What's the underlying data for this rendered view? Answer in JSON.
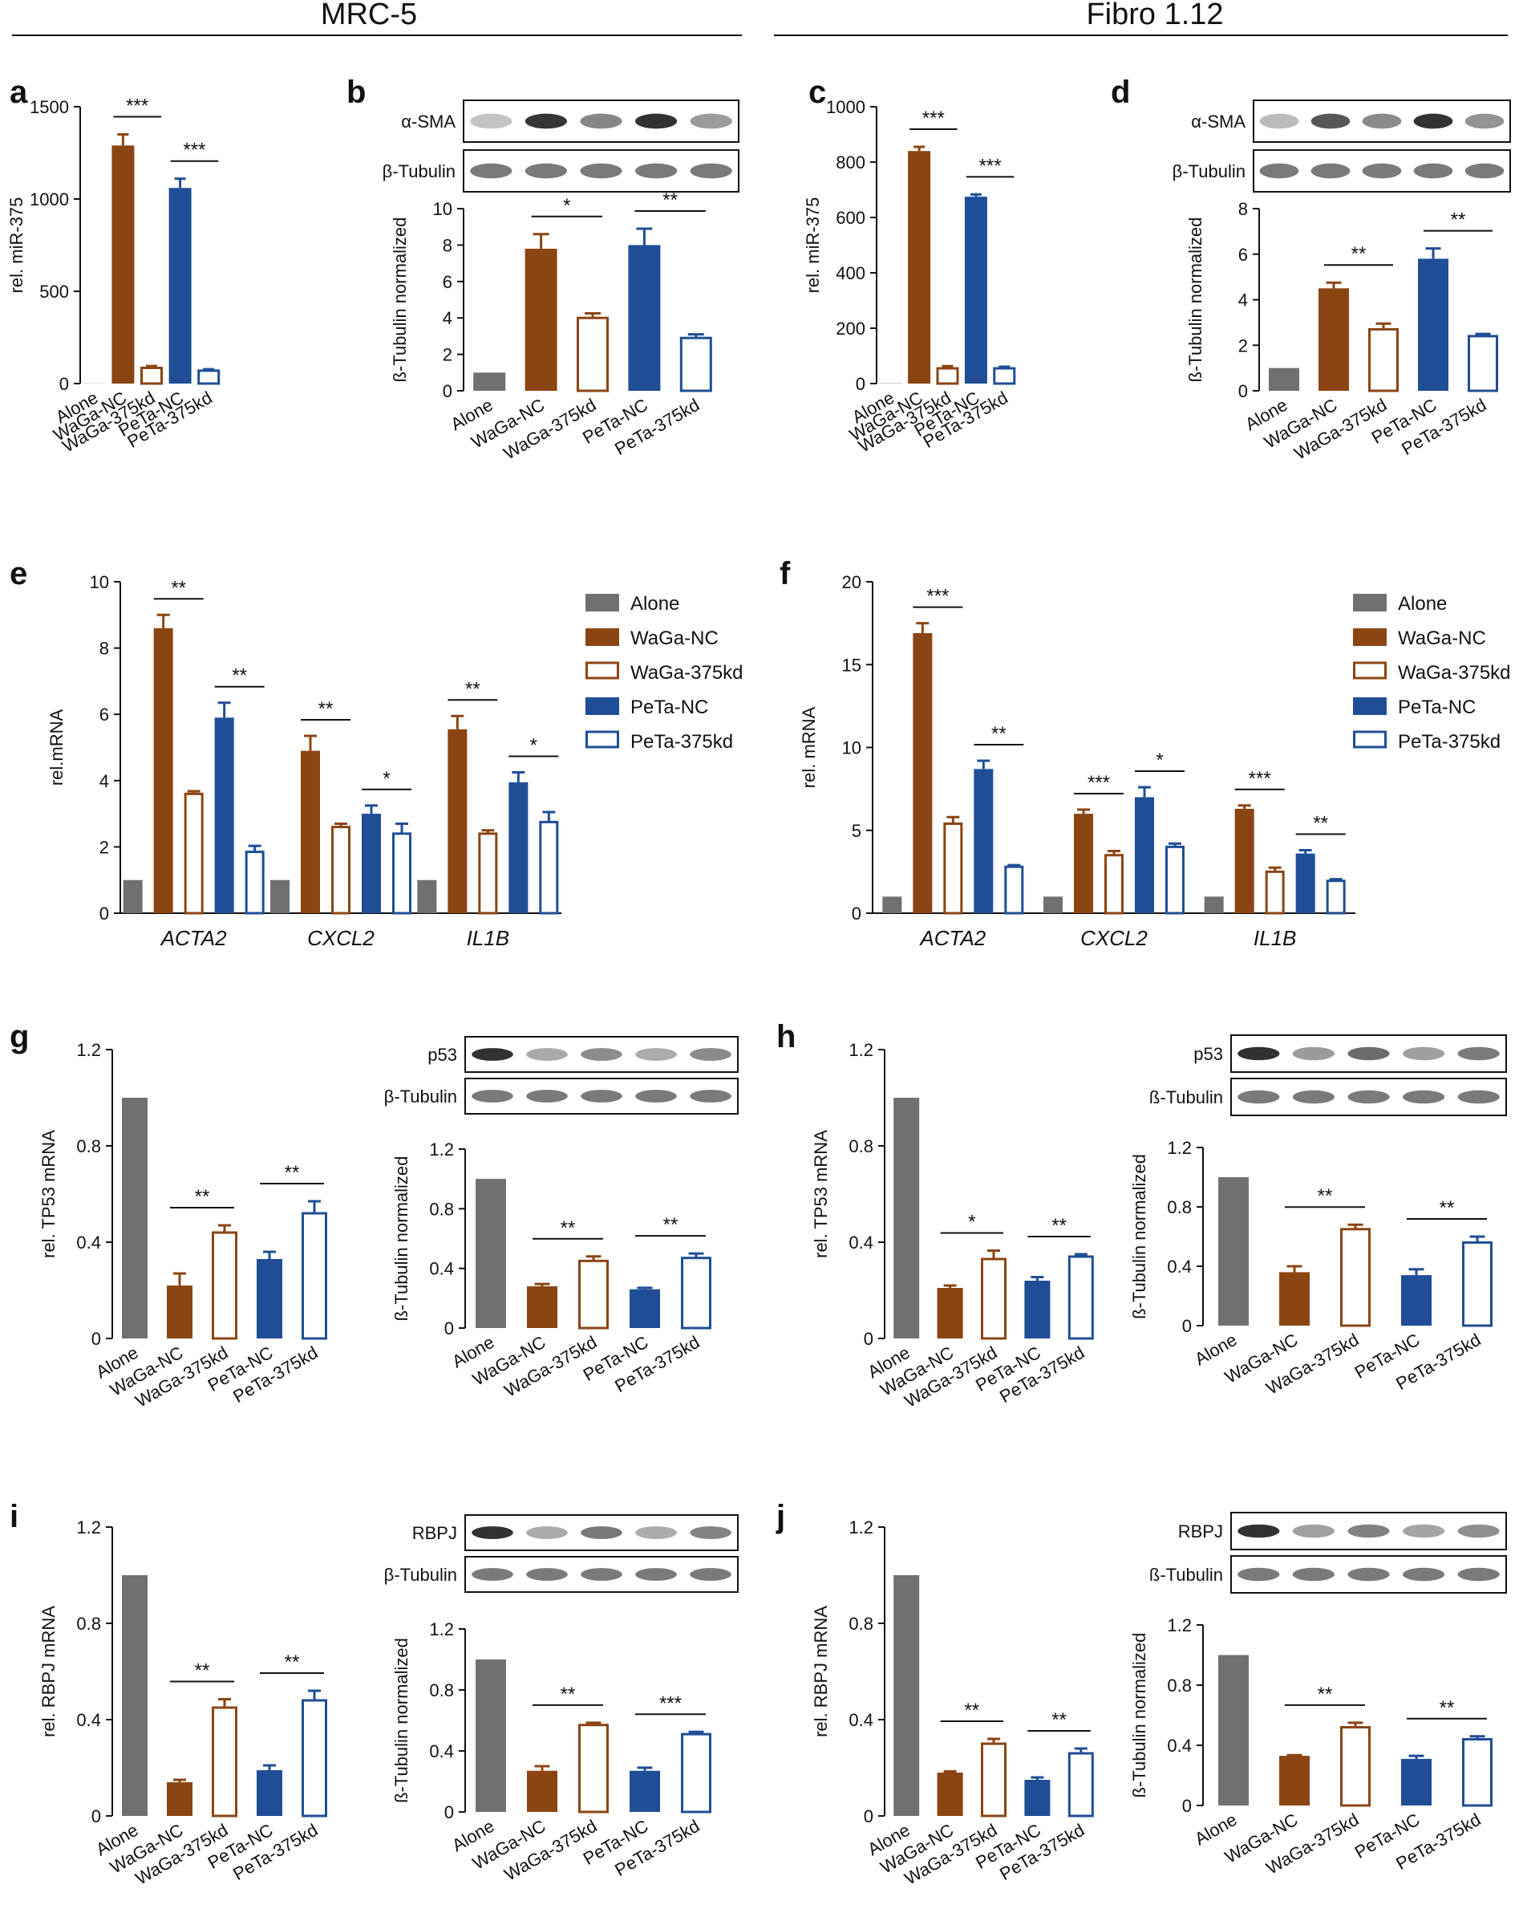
{
  "headers": {
    "left": "MRC-5",
    "right": "Fibro 1.12"
  },
  "colors": {
    "Alone": "#707070",
    "WaGa-NC": "#8B4513",
    "WaGa-375kd": "#8B4513",
    "PeTa-NC": "#1F4E96",
    "PeTa-375kd": "#1F4E96"
  },
  "legend": [
    "Alone",
    "WaGa-NC",
    "WaGa-375kd",
    "PeTa-NC",
    "PeTa-375kd"
  ],
  "chart_data": [
    {
      "id": "a",
      "type": "bar",
      "panel": "a",
      "categories": [
        "Alone",
        "WaGa-NC",
        "WaGa-375kd",
        "PeTa-NC",
        "PeTa-375kd"
      ],
      "values": [
        1,
        1290,
        85,
        1060,
        70
      ],
      "errors": [
        0,
        60,
        10,
        50,
        8
      ],
      "ylabel": "rel. miR-375",
      "ylim": [
        0,
        1500
      ],
      "yticks": [
        0,
        500,
        1000,
        1500
      ],
      "sig": [
        {
          "from": 1,
          "to": 2,
          "label": "***"
        },
        {
          "from": 3,
          "to": 4,
          "label": "***"
        }
      ]
    },
    {
      "id": "b",
      "type": "bar",
      "panel": "b",
      "categories": [
        "Alone",
        "WaGa-NC",
        "WaGa-375kd",
        "PeTa-NC",
        "PeTa-375kd"
      ],
      "values": [
        1,
        7.8,
        4.0,
        8.0,
        2.9
      ],
      "errors": [
        0,
        0.8,
        0.25,
        0.9,
        0.2
      ],
      "ylabel": "ß-Tubulin normalized",
      "ylim": [
        0,
        10
      ],
      "yticks": [
        0,
        2,
        4,
        6,
        8,
        10
      ],
      "blots": [
        "α-SMA",
        "β-Tubulin"
      ],
      "sig": [
        {
          "from": 1,
          "to": 2,
          "label": "*"
        },
        {
          "from": 3,
          "to": 4,
          "label": "**"
        }
      ]
    },
    {
      "id": "c",
      "type": "bar",
      "panel": "c",
      "categories": [
        "Alone",
        "WaGa-NC",
        "WaGa-375kd",
        "PeTa-NC",
        "PeTa-375kd"
      ],
      "values": [
        1,
        840,
        55,
        675,
        55
      ],
      "errors": [
        0,
        15,
        8,
        8,
        6
      ],
      "ylabel": "rel. miR-375",
      "ylim": [
        0,
        1000
      ],
      "yticks": [
        0,
        200,
        400,
        600,
        800,
        1000
      ],
      "sig": [
        {
          "from": 1,
          "to": 2,
          "label": "***"
        },
        {
          "from": 3,
          "to": 4,
          "label": "***"
        }
      ]
    },
    {
      "id": "d",
      "type": "bar",
      "panel": "d",
      "categories": [
        "Alone",
        "WaGa-NC",
        "WaGa-375kd",
        "PeTa-NC",
        "PeTa-375kd"
      ],
      "values": [
        1,
        4.5,
        2.7,
        5.8,
        2.4
      ],
      "errors": [
        0,
        0.25,
        0.25,
        0.45,
        0.1
      ],
      "ylabel": "ß-Tubulin normalized",
      "ylim": [
        0,
        8
      ],
      "yticks": [
        0,
        2,
        4,
        6,
        8
      ],
      "blots": [
        "α-SMA",
        "β-Tubulin"
      ],
      "sig": [
        {
          "from": 1,
          "to": 2,
          "label": "**"
        },
        {
          "from": 3,
          "to": 4,
          "label": "**"
        }
      ]
    },
    {
      "id": "e",
      "type": "bar",
      "panel": "e",
      "groups": [
        "ACTA2",
        "CXCL2",
        "IL1B"
      ],
      "series": [
        {
          "name": "Alone",
          "values": [
            1,
            1,
            1
          ],
          "errors": [
            0,
            0,
            0
          ]
        },
        {
          "name": "WaGa-NC",
          "values": [
            8.6,
            4.9,
            5.55
          ],
          "errors": [
            0.4,
            0.45,
            0.4
          ]
        },
        {
          "name": "WaGa-375kd",
          "values": [
            3.6,
            2.6,
            2.4
          ],
          "errors": [
            0.08,
            0.1,
            0.1
          ]
        },
        {
          "name": "PeTa-NC",
          "values": [
            5.9,
            3.0,
            3.95
          ],
          "errors": [
            0.45,
            0.25,
            0.3
          ]
        },
        {
          "name": "PeTa-375kd",
          "values": [
            1.85,
            2.4,
            2.75
          ],
          "errors": [
            0.18,
            0.3,
            0.3
          ]
        }
      ],
      "ylabel": "rel.mRNA",
      "ylim": [
        0,
        10
      ],
      "yticks": [
        0,
        2,
        4,
        6,
        8,
        10
      ],
      "sig": [
        {
          "group": 0,
          "from": 1,
          "to": 2,
          "label": "**"
        },
        {
          "group": 0,
          "from": 3,
          "to": 4,
          "label": "**"
        },
        {
          "group": 1,
          "from": 1,
          "to": 2,
          "label": "**"
        },
        {
          "group": 1,
          "from": 3,
          "to": 4,
          "label": "*"
        },
        {
          "group": 2,
          "from": 1,
          "to": 2,
          "label": "**"
        },
        {
          "group": 2,
          "from": 3,
          "to": 4,
          "label": "*"
        }
      ]
    },
    {
      "id": "f",
      "type": "bar",
      "panel": "f",
      "groups": [
        "ACTA2",
        "CXCL2",
        "IL1B"
      ],
      "series": [
        {
          "name": "Alone",
          "values": [
            1,
            1,
            1
          ],
          "errors": [
            0,
            0,
            0
          ]
        },
        {
          "name": "WaGa-NC",
          "values": [
            16.9,
            6.0,
            6.3
          ],
          "errors": [
            0.6,
            0.25,
            0.2
          ]
        },
        {
          "name": "WaGa-375kd",
          "values": [
            5.4,
            3.5,
            2.5
          ],
          "errors": [
            0.4,
            0.25,
            0.25
          ]
        },
        {
          "name": "PeTa-NC",
          "values": [
            8.7,
            7.0,
            3.6
          ],
          "errors": [
            0.5,
            0.6,
            0.2
          ]
        },
        {
          "name": "PeTa-375kd",
          "values": [
            2.8,
            4.0,
            1.95
          ],
          "errors": [
            0.1,
            0.2,
            0.1
          ]
        }
      ],
      "ylabel": "rel. mRNA",
      "ylim": [
        0,
        20
      ],
      "yticks": [
        0,
        5,
        10,
        15,
        20
      ],
      "sig": [
        {
          "group": 0,
          "from": 1,
          "to": 2,
          "label": "***"
        },
        {
          "group": 0,
          "from": 3,
          "to": 4,
          "label": "**"
        },
        {
          "group": 1,
          "from": 1,
          "to": 2,
          "label": "***"
        },
        {
          "group": 1,
          "from": 3,
          "to": 4,
          "label": "*"
        },
        {
          "group": 2,
          "from": 1,
          "to": 2,
          "label": "***"
        },
        {
          "group": 2,
          "from": 3,
          "to": 4,
          "label": "**"
        }
      ]
    },
    {
      "id": "g1",
      "type": "bar",
      "panel": "g",
      "categories": [
        "Alone",
        "WaGa-NC",
        "WaGa-375kd",
        "PeTa-NC",
        "PeTa-375kd"
      ],
      "values": [
        1.0,
        0.22,
        0.44,
        0.33,
        0.52
      ],
      "errors": [
        0,
        0.05,
        0.03,
        0.03,
        0.05
      ],
      "ylabel": "rel. TP53 mRNA",
      "ylim": [
        0,
        1.2
      ],
      "yticks": [
        "0",
        "0.4",
        "0.8",
        "1.2"
      ],
      "sig": [
        {
          "from": 1,
          "to": 2,
          "label": "**"
        },
        {
          "from": 3,
          "to": 4,
          "label": "**"
        }
      ]
    },
    {
      "id": "g2",
      "type": "bar",
      "categories": [
        "Alone",
        "WaGa-NC",
        "WaGa-375kd",
        "PeTa-NC",
        "PeTa-375kd"
      ],
      "values": [
        1.0,
        0.28,
        0.45,
        0.26,
        0.47
      ],
      "errors": [
        0,
        0.015,
        0.03,
        0.01,
        0.03
      ],
      "ylabel": "ß-Tubulin normalized",
      "ylim": [
        0,
        1.2
      ],
      "yticks": [
        "0",
        "0.4",
        "0.8",
        "1.2"
      ],
      "blots": [
        "p53",
        "β-Tubulin"
      ],
      "sig": [
        {
          "from": 1,
          "to": 2,
          "label": "**"
        },
        {
          "from": 3,
          "to": 4,
          "label": "**"
        }
      ]
    },
    {
      "id": "h1",
      "type": "bar",
      "panel": "h",
      "categories": [
        "Alone",
        "WaGa-NC",
        "WaGa-375kd",
        "PeTa-NC",
        "PeTa-375kd"
      ],
      "values": [
        1.0,
        0.21,
        0.33,
        0.24,
        0.34
      ],
      "errors": [
        0,
        0.01,
        0.035,
        0.015,
        0.01
      ],
      "ylabel": "rel. TP53 mRNA",
      "ylim": [
        0,
        1.2
      ],
      "yticks": [
        "0",
        "0.4",
        "0.8",
        "1.2"
      ],
      "sig": [
        {
          "from": 1,
          "to": 2,
          "label": "*"
        },
        {
          "from": 3,
          "to": 4,
          "label": "**"
        }
      ]
    },
    {
      "id": "h2",
      "type": "bar",
      "categories": [
        "Alone",
        "WaGa-NC",
        "WaGa-375kd",
        "PeTa-NC",
        "PeTa-375kd"
      ],
      "values": [
        1.0,
        0.36,
        0.65,
        0.34,
        0.56
      ],
      "errors": [
        0,
        0.04,
        0.03,
        0.04,
        0.04
      ],
      "ylabel": "ß-Tubulin normalized",
      "ylim": [
        0,
        1.2
      ],
      "yticks": [
        "0",
        "0.4",
        "0.8",
        "1.2"
      ],
      "blots": [
        "p53",
        "ß-Tubulin"
      ],
      "sig": [
        {
          "from": 1,
          "to": 2,
          "label": "**"
        },
        {
          "from": 3,
          "to": 4,
          "label": "**"
        }
      ]
    },
    {
      "id": "i1",
      "type": "bar",
      "panel": "i",
      "categories": [
        "Alone",
        "WaGa-NC",
        "WaGa-375kd",
        "PeTa-NC",
        "PeTa-375kd"
      ],
      "values": [
        1.0,
        0.14,
        0.45,
        0.19,
        0.48
      ],
      "errors": [
        0,
        0.01,
        0.035,
        0.02,
        0.04
      ],
      "ylabel": "rel. RBPJ mRNA",
      "ylim": [
        0,
        1.2
      ],
      "yticks": [
        "0",
        "0.4",
        "0.8",
        "1.2"
      ],
      "sig": [
        {
          "from": 1,
          "to": 2,
          "label": "**"
        },
        {
          "from": 3,
          "to": 4,
          "label": "**"
        }
      ]
    },
    {
      "id": "i2",
      "type": "bar",
      "categories": [
        "Alone",
        "WaGa-NC",
        "WaGa-375kd",
        "PeTa-NC",
        "PeTa-375kd"
      ],
      "values": [
        1.0,
        0.27,
        0.57,
        0.27,
        0.51
      ],
      "errors": [
        0,
        0.03,
        0.015,
        0.02,
        0.015
      ],
      "ylabel": "ß-Tubulin normalized",
      "ylim": [
        0,
        1.2
      ],
      "yticks": [
        "0",
        "0.4",
        "0.8",
        "1.2"
      ],
      "blots": [
        "RBPJ",
        "β-Tubulin"
      ],
      "sig": [
        {
          "from": 1,
          "to": 2,
          "label": "**"
        },
        {
          "from": 3,
          "to": 4,
          "label": "***"
        }
      ]
    },
    {
      "id": "j1",
      "type": "bar",
      "panel": "j",
      "categories": [
        "Alone",
        "WaGa-NC",
        "WaGa-375kd",
        "PeTa-NC",
        "PeTa-375kd"
      ],
      "values": [
        1.0,
        0.18,
        0.3,
        0.15,
        0.26
      ],
      "errors": [
        0,
        0.005,
        0.02,
        0.01,
        0.02
      ],
      "ylabel": "rel. RBPJ mRNA",
      "ylim": [
        0,
        1.2
      ],
      "yticks": [
        "0",
        "0.4",
        "0.8",
        "1.2"
      ],
      "sig": [
        {
          "from": 1,
          "to": 2,
          "label": "**"
        },
        {
          "from": 3,
          "to": 4,
          "label": "**"
        }
      ]
    },
    {
      "id": "j2",
      "type": "bar",
      "categories": [
        "Alone",
        "WaGa-NC",
        "WaGa-375kd",
        "PeTa-NC",
        "PeTa-375kd"
      ],
      "values": [
        1.0,
        0.33,
        0.52,
        0.31,
        0.44
      ],
      "errors": [
        0,
        0.005,
        0.03,
        0.02,
        0.02
      ],
      "ylabel": "ß-Tubulin normalized",
      "ylim": [
        0,
        1.2
      ],
      "yticks": [
        "0",
        "0.4",
        "0.8",
        "1.2"
      ],
      "blots": [
        "RBPJ",
        "ß-Tubulin"
      ],
      "sig": [
        {
          "from": 1,
          "to": 2,
          "label": "**"
        },
        {
          "from": 3,
          "to": 4,
          "label": "**"
        }
      ]
    }
  ]
}
